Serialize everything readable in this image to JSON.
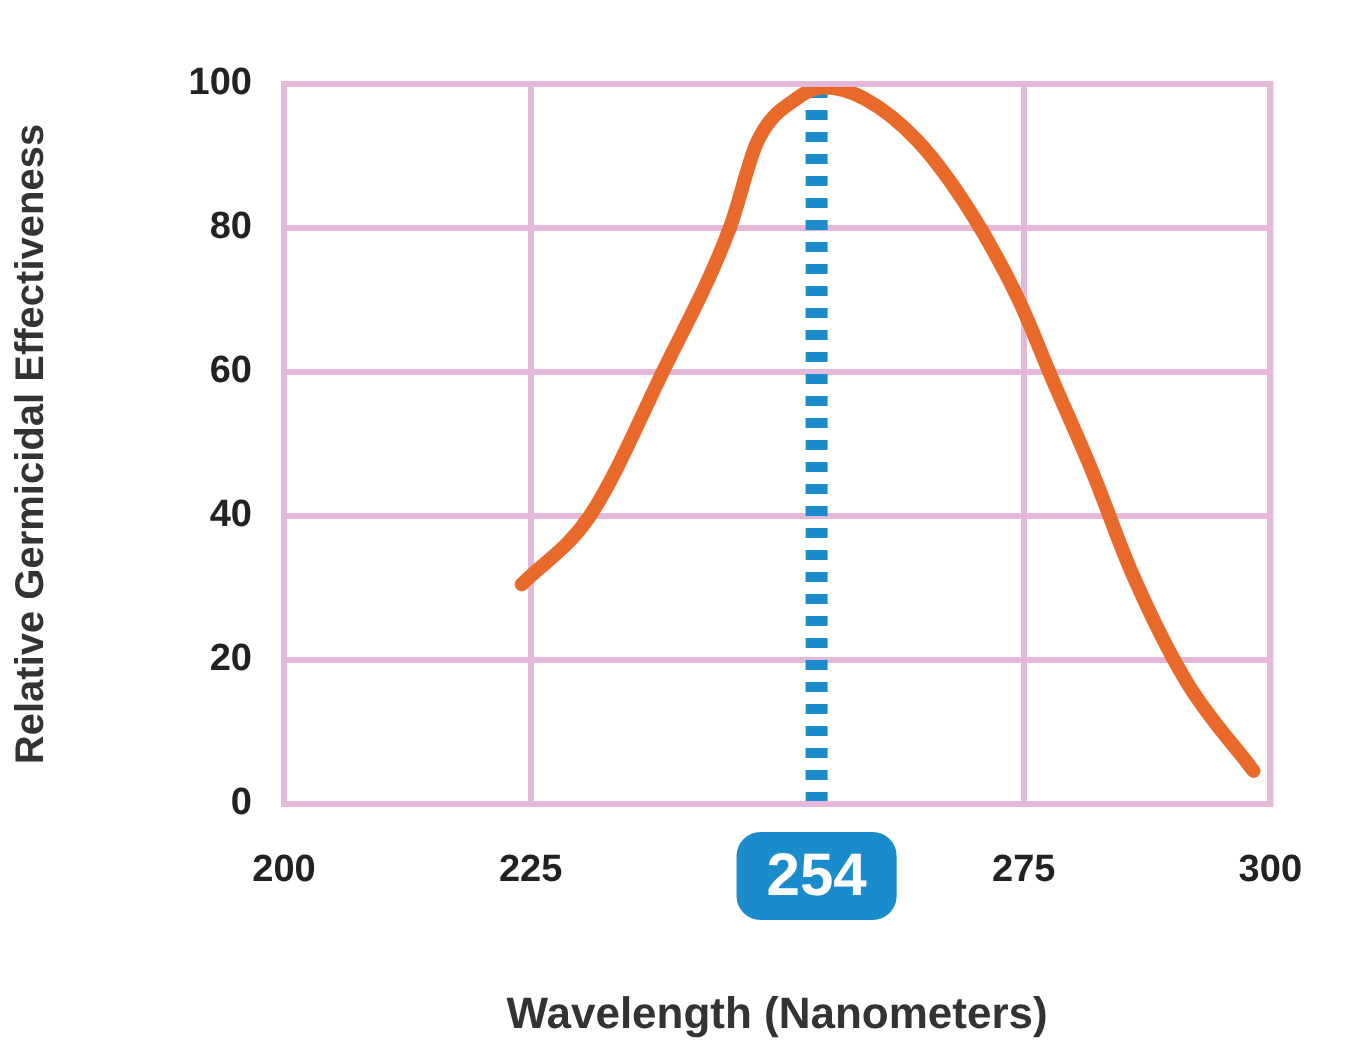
{
  "chart_data": {
    "type": "line",
    "xlabel": "Wavelength (Nanometers)",
    "ylabel": "Relative Germicidal Effectiveness",
    "series": [
      {
        "color": "#e8692a",
        "x": [
          224.1,
          231,
          238.4,
          245.2,
          248,
          252,
          254.8,
          258.8,
          264.3,
          269.7,
          274.5,
          277.9,
          282,
          286,
          291.5,
          298.3
        ],
        "values": [
          30.5,
          40,
          60,
          80,
          92,
          98,
          99.5,
          98,
          92,
          82,
          70,
          59,
          46,
          32,
          17,
          4.6
        ]
      }
    ],
    "xlim": [
      200,
      300
    ],
    "xticks": [
      200,
      225,
      275,
      300
    ],
    "ylim": [
      0,
      100
    ],
    "yticks": [
      0,
      20,
      40,
      60,
      80,
      100
    ],
    "ref_lines": [
      {
        "axis": "x",
        "value": 254,
        "label": "254",
        "color": "#1a8ccc",
        "line_style": "dashed"
      }
    ],
    "grid": true,
    "legend": false,
    "marker": "none",
    "line_style": "solid"
  }
}
